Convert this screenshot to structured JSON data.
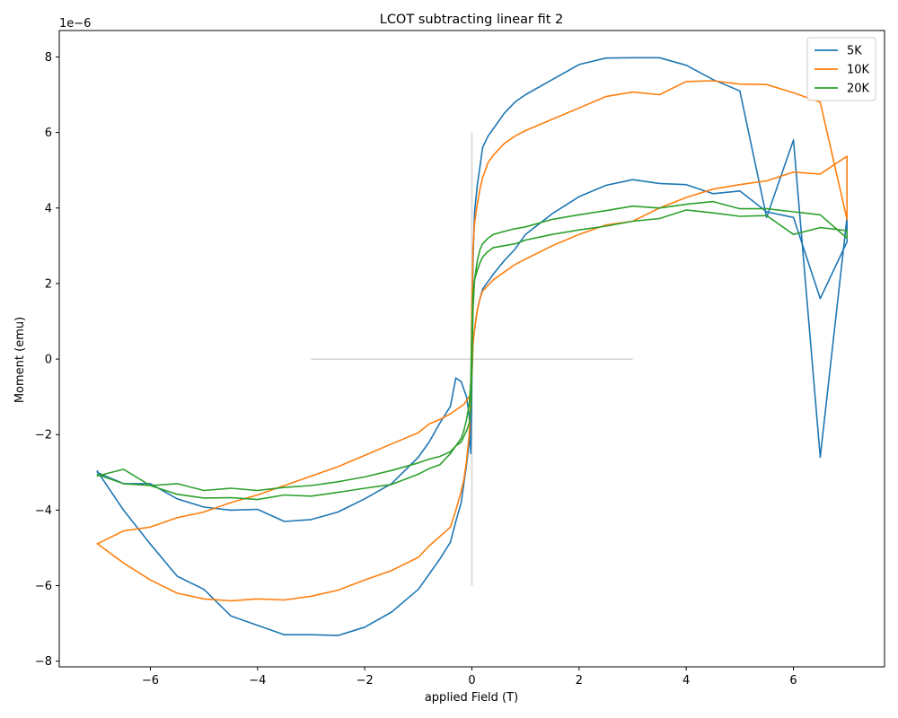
{
  "chart_data": {
    "type": "line",
    "title": "LCOT subtracting linear fit 2",
    "xlabel": "applied Field (T)",
    "ylabel": "Moment (emu)",
    "y_offset_label": "1e−6",
    "xlim": [
      -7.7,
      7.7
    ],
    "ylim": [
      -8.15,
      8.7
    ],
    "x_ticks": [
      -6,
      -4,
      -2,
      0,
      2,
      4,
      6
    ],
    "y_ticks": [
      -8,
      -6,
      -4,
      -2,
      0,
      2,
      4,
      6,
      8
    ],
    "grid": false,
    "legend_position": "top-right",
    "reference_lines": [
      {
        "x": [
          -3,
          3
        ],
        "y": [
          0,
          0
        ],
        "color": "#d3d3d3"
      },
      {
        "x": [
          0,
          0
        ],
        "y": [
          -6,
          6
        ],
        "color": "#d3d3d3"
      }
    ],
    "series": [
      {
        "name": "5K",
        "color": "#1f77b4",
        "x": [
          -7,
          -6.5,
          -6,
          -5.5,
          -5,
          -4.5,
          -4,
          -3.5,
          -3,
          -2.5,
          -2,
          -1.5,
          -1,
          -0.8,
          -0.6,
          -0.4,
          -0.3,
          -0.2,
          -0.15,
          -0.1,
          -0.05,
          -0.02,
          0,
          0.02,
          0.05,
          0.1,
          0.15,
          0.2,
          0.3,
          0.4,
          0.6,
          0.8,
          1,
          1.5,
          2,
          2.5,
          3,
          3.5,
          4,
          4.5,
          5,
          5.5,
          6,
          6.5,
          7,
          7,
          6.5,
          6,
          5.5,
          5,
          4.5,
          4,
          3.5,
          3,
          2.5,
          2,
          1.5,
          1,
          0.8,
          0.6,
          0.4,
          0.3,
          0.2,
          0.15,
          0.1,
          0.05,
          0.02,
          0,
          -0.02,
          -0.05,
          -0.1,
          -0.15,
          -0.2,
          -0.3,
          -0.4,
          -0.6,
          -0.8,
          -1,
          -1.5,
          -2,
          -2.5,
          -3,
          -3.5,
          -4,
          -4.5,
          -5,
          -5.5,
          -6,
          -6.5,
          -7
        ],
        "y": [
          -2.95,
          -4.0,
          -4.9,
          -5.75,
          -6.1,
          -6.8,
          -7.05,
          -7.3,
          -7.3,
          -7.32,
          -7.1,
          -6.7,
          -6.1,
          -5.7,
          -5.3,
          -4.85,
          -4.3,
          -3.8,
          -3.3,
          -2.8,
          -2.2,
          -1.5,
          0.3,
          2.6,
          3.9,
          4.6,
          5.1,
          5.6,
          5.9,
          6.1,
          6.5,
          6.8,
          7.0,
          7.4,
          7.8,
          7.97,
          7.98,
          7.98,
          7.78,
          7.4,
          7.1,
          3.75,
          5.8,
          -2.6,
          3.75,
          3.1,
          1.6,
          3.75,
          3.9,
          4.45,
          4.38,
          4.62,
          4.65,
          4.75,
          4.6,
          4.3,
          3.85,
          3.3,
          2.9,
          2.6,
          2.25,
          2.05,
          1.85,
          1.6,
          1.3,
          0.8,
          0.4,
          -0.5,
          -2.5,
          -1.5,
          -1.0,
          -0.8,
          -0.6,
          -0.5,
          -1.25,
          -1.7,
          -2.2,
          -2.6,
          -3.3,
          -3.7,
          -4.05,
          -4.25,
          -4.3,
          -3.98,
          -4.0,
          -3.92,
          -3.7,
          -3.3,
          -3.3,
          -3.0
        ]
      },
      {
        "name": "10K",
        "color": "#ff7f0e",
        "x": [
          -7,
          -6.5,
          -6,
          -5.5,
          -5,
          -4.5,
          -4,
          -3.5,
          -3,
          -2.5,
          -2,
          -1.5,
          -1,
          -0.8,
          -0.6,
          -0.4,
          -0.3,
          -0.2,
          -0.15,
          -0.1,
          -0.05,
          -0.02,
          0,
          0.02,
          0.05,
          0.1,
          0.15,
          0.2,
          0.3,
          0.4,
          0.6,
          0.8,
          1,
          1.5,
          2,
          2.5,
          3,
          3.5,
          4,
          4.5,
          5,
          5.5,
          6,
          6.5,
          7,
          7,
          6.5,
          6,
          5.5,
          5,
          4.5,
          4,
          3.5,
          3,
          2.5,
          2,
          1.5,
          1,
          0.8,
          0.6,
          0.4,
          0.3,
          0.2,
          0.15,
          0.1,
          0.05,
          0.02,
          0,
          -0.02,
          -0.05,
          -0.1,
          -0.15,
          -0.2,
          -0.3,
          -0.4,
          -0.6,
          -0.8,
          -1,
          -1.5,
          -2,
          -2.5,
          -3,
          -3.5,
          -4,
          -4.5,
          -5,
          -5.5,
          -6,
          -6.5,
          -7
        ],
        "y": [
          -4.88,
          -5.4,
          -5.85,
          -6.2,
          -6.35,
          -6.4,
          -6.35,
          -6.38,
          -6.28,
          -6.12,
          -5.85,
          -5.6,
          -5.25,
          -4.95,
          -4.7,
          -4.45,
          -4.0,
          -3.5,
          -3.2,
          -2.7,
          -2.0,
          -1.0,
          1.5,
          2.9,
          3.6,
          4.1,
          4.5,
          4.8,
          5.2,
          5.4,
          5.7,
          5.9,
          6.05,
          6.35,
          6.65,
          6.95,
          7.07,
          7.0,
          7.35,
          7.37,
          7.28,
          7.27,
          7.05,
          6.8,
          3.7,
          5.37,
          4.9,
          4.95,
          4.72,
          4.62,
          4.5,
          4.28,
          4.0,
          3.65,
          3.55,
          3.3,
          3.0,
          2.65,
          2.5,
          2.3,
          2.1,
          1.95,
          1.8,
          1.6,
          1.3,
          0.8,
          0.4,
          -0.4,
          -0.9,
          -1.0,
          -1.1,
          -1.2,
          -1.25,
          -1.35,
          -1.45,
          -1.6,
          -1.72,
          -1.95,
          -2.25,
          -2.55,
          -2.85,
          -3.1,
          -3.35,
          -3.6,
          -3.8,
          -4.05,
          -4.2,
          -4.45,
          -4.55,
          -4.9
        ]
      },
      {
        "name": "20K",
        "color": "#2ca02c",
        "x": [
          -7,
          -6.5,
          -6,
          -5.5,
          -5,
          -4.5,
          -4,
          -3.5,
          -3,
          -2.5,
          -2,
          -1.5,
          -1,
          -0.8,
          -0.6,
          -0.4,
          -0.3,
          -0.2,
          -0.15,
          -0.1,
          -0.05,
          -0.02,
          0,
          0.02,
          0.05,
          0.1,
          0.15,
          0.2,
          0.3,
          0.4,
          0.6,
          0.8,
          1,
          1.5,
          2,
          2.5,
          3,
          3.5,
          4,
          4.5,
          5,
          5.5,
          6,
          6.5,
          7,
          7,
          6.5,
          6,
          5.5,
          5,
          4.5,
          4,
          3.5,
          3,
          2.5,
          2,
          1.5,
          1,
          0.8,
          0.6,
          0.4,
          0.3,
          0.2,
          0.15,
          0.1,
          0.05,
          0.02,
          0,
          -0.02,
          -0.05,
          -0.1,
          -0.15,
          -0.2,
          -0.3,
          -0.4,
          -0.6,
          -0.8,
          -1,
          -1.5,
          -2,
          -2.5,
          -3,
          -3.5,
          -4,
          -4.5,
          -5,
          -5.5,
          -6,
          -6.5,
          -7
        ],
        "y": [
          -3.1,
          -2.92,
          -3.35,
          -3.58,
          -3.68,
          -3.67,
          -3.72,
          -3.6,
          -3.63,
          -3.53,
          -3.42,
          -3.32,
          -3.05,
          -2.9,
          -2.8,
          -2.5,
          -2.3,
          -2.1,
          -1.9,
          -1.6,
          -1.2,
          -0.6,
          0.8,
          1.7,
          2.1,
          2.35,
          2.55,
          2.7,
          2.85,
          2.95,
          3.0,
          3.05,
          3.15,
          3.3,
          3.42,
          3.52,
          3.65,
          3.72,
          3.95,
          3.87,
          3.78,
          3.8,
          3.3,
          3.48,
          3.4,
          3.2,
          3.82,
          3.9,
          3.98,
          3.98,
          4.17,
          4.1,
          4.0,
          4.05,
          3.93,
          3.82,
          3.7,
          3.5,
          3.45,
          3.38,
          3.3,
          3.2,
          3.05,
          2.9,
          2.6,
          2.1,
          1.3,
          -0.2,
          -1.3,
          -1.7,
          -1.9,
          -2.05,
          -2.2,
          -2.3,
          -2.45,
          -2.58,
          -2.65,
          -2.75,
          -2.95,
          -3.12,
          -3.25,
          -3.35,
          -3.4,
          -3.48,
          -3.42,
          -3.48,
          -3.3,
          -3.35,
          -3.3,
          -3.05
        ]
      }
    ]
  }
}
